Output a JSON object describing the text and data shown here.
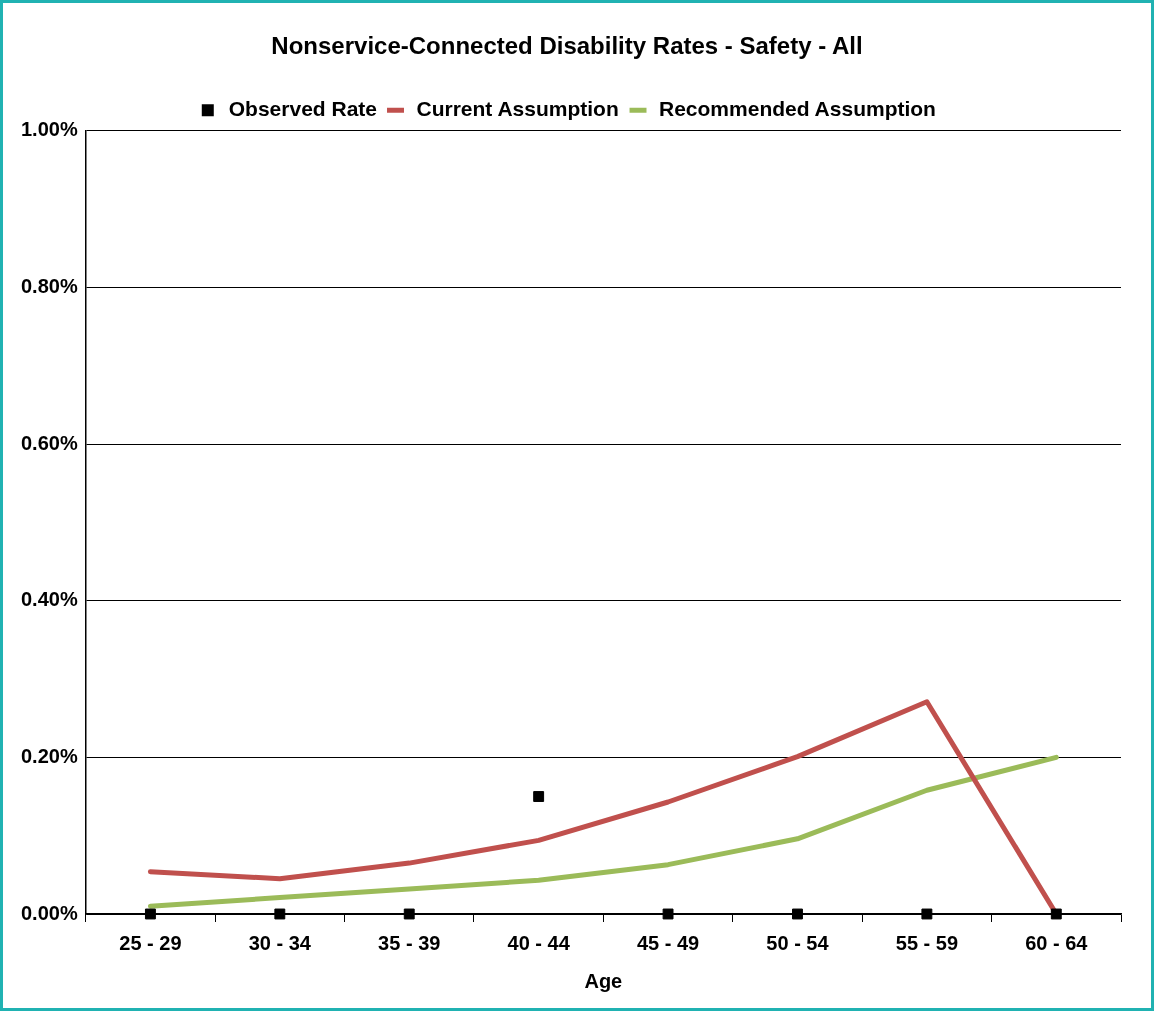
{
  "chart_data": {
    "type": "line",
    "title": "Nonservice-Connected Disability Rates - Safety - All",
    "xlabel": "Age",
    "categories": [
      "25 - 29",
      "30 - 34",
      "35 - 39",
      "40 - 44",
      "45 - 49",
      "50 - 54",
      "55 - 59",
      "60 - 64"
    ],
    "series": [
      {
        "name": "Observed Rate",
        "type": "scatter",
        "color": "#000000",
        "marker": "square",
        "values": [
          0,
          0,
          0,
          0.15,
          0,
          0,
          0,
          0
        ]
      },
      {
        "name": "Current Assumption",
        "color": "#c0504d",
        "values": [
          0.054,
          0.045,
          0.065,
          0.094,
          0.143,
          0.201,
          0.271,
          0
        ]
      },
      {
        "name": "Recommended Assumption",
        "color": "#9bbb59",
        "values": [
          0.01,
          0.021,
          0.032,
          0.043,
          0.063,
          0.096,
          0.158,
          0.2
        ]
      }
    ],
    "ylim": [
      0,
      1
    ],
    "yticks": [
      {
        "value": 0,
        "label": "0.00%"
      },
      {
        "value": 0.2,
        "label": "0.20%"
      },
      {
        "value": 0.4,
        "label": "0.40%"
      },
      {
        "value": 0.6,
        "label": "0.60%"
      },
      {
        "value": 0.8,
        "label": "0.80%"
      },
      {
        "value": 1,
        "label": "1.00%"
      }
    ],
    "grid": "y",
    "legend": "top"
  }
}
